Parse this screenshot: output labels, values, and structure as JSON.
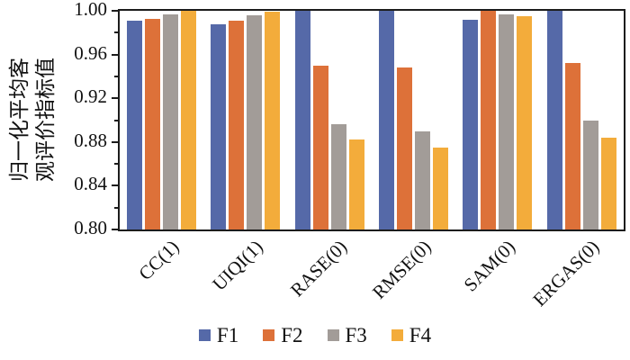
{
  "figure": {
    "background": "#ffffff"
  },
  "axis": {
    "ylabel_line1": "归一化平均客",
    "ylabel_line2": "观评价指标值",
    "major_ticks": [
      {
        "label": "1.00",
        "value": 1.0
      },
      {
        "label": "0.96",
        "value": 0.96
      },
      {
        "label": "0.92",
        "value": 0.92
      },
      {
        "label": "0.88",
        "value": 0.88
      },
      {
        "label": "0.84",
        "value": 0.84
      },
      {
        "label": "0.80",
        "value": 0.8
      }
    ],
    "minor_ticks": [
      0.98,
      0.94,
      0.9,
      0.86,
      0.82
    ]
  },
  "chart_data": {
    "type": "bar",
    "title": "",
    "xlabel": "",
    "ylabel": "归一化平均客观评价指标值",
    "ylim": [
      0.8,
      1.0
    ],
    "grid": false,
    "legend_position": "bottom",
    "categories": [
      "CC(1)",
      "UIQI(1)",
      "RASE(0)",
      "RMSE(0)",
      "SAM(0)",
      "ERGAS(0)"
    ],
    "series": [
      {
        "name": "F1",
        "color": "#5569A8",
        "values": [
          0.991,
          0.988,
          1.0,
          1.0,
          0.992,
          1.0
        ]
      },
      {
        "name": "F2",
        "color": "#DD7139",
        "values": [
          0.993,
          0.991,
          0.95,
          0.948,
          1.0,
          0.952
        ]
      },
      {
        "name": "F3",
        "color": "#A29C98",
        "values": [
          0.997,
          0.996,
          0.896,
          0.89,
          0.997,
          0.9
        ]
      },
      {
        "name": "F4",
        "color": "#F3AC3B",
        "values": [
          1.0,
          0.999,
          0.882,
          0.875,
          0.995,
          0.884
        ]
      }
    ]
  },
  "legend": {
    "items": [
      {
        "label": "F1",
        "color": "#5569A8"
      },
      {
        "label": "F2",
        "color": "#DD7139"
      },
      {
        "label": "F3",
        "color": "#A29C98"
      },
      {
        "label": "F4",
        "color": "#F3AC3B"
      }
    ]
  }
}
